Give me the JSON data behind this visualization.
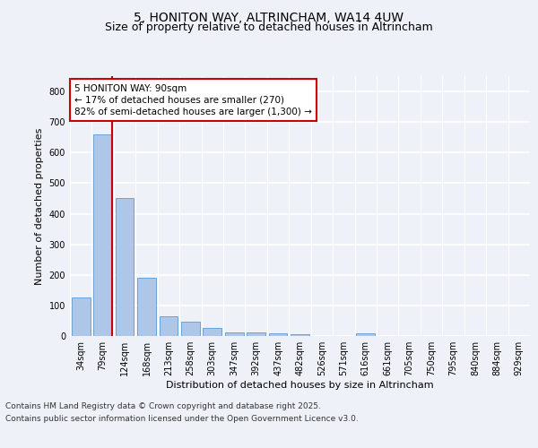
{
  "title_line1": "5, HONITON WAY, ALTRINCHAM, WA14 4UW",
  "title_line2": "Size of property relative to detached houses in Altrincham",
  "xlabel": "Distribution of detached houses by size in Altrincham",
  "ylabel": "Number of detached properties",
  "categories": [
    "34sqm",
    "79sqm",
    "124sqm",
    "168sqm",
    "213sqm",
    "258sqm",
    "303sqm",
    "347sqm",
    "392sqm",
    "437sqm",
    "482sqm",
    "526sqm",
    "571sqm",
    "616sqm",
    "661sqm",
    "705sqm",
    "750sqm",
    "795sqm",
    "840sqm",
    "884sqm",
    "929sqm"
  ],
  "values": [
    125,
    660,
    450,
    190,
    65,
    48,
    25,
    12,
    12,
    8,
    5,
    0,
    0,
    8,
    0,
    0,
    0,
    0,
    0,
    0,
    0
  ],
  "bar_color": "#aec6e8",
  "bar_edge_color": "#5b9bd5",
  "red_line_index": 1,
  "ylim": [
    0,
    850
  ],
  "yticks": [
    0,
    100,
    200,
    300,
    400,
    500,
    600,
    700,
    800
  ],
  "annotation_text": "5 HONITON WAY: 90sqm\n← 17% of detached houses are smaller (270)\n82% of semi-detached houses are larger (1,300) →",
  "annotation_box_color": "#ffffff",
  "annotation_border_color": "#cc0000",
  "footer_line1": "Contains HM Land Registry data © Crown copyright and database right 2025.",
  "footer_line2": "Contains public sector information licensed under the Open Government Licence v3.0.",
  "background_color": "#eef2f8",
  "plot_background": "#eef2f8",
  "grid_color": "#ffffff",
  "title_fontsize": 10,
  "subtitle_fontsize": 9,
  "axis_label_fontsize": 8,
  "tick_fontsize": 7,
  "annotation_fontsize": 7.5,
  "footer_fontsize": 6.5
}
